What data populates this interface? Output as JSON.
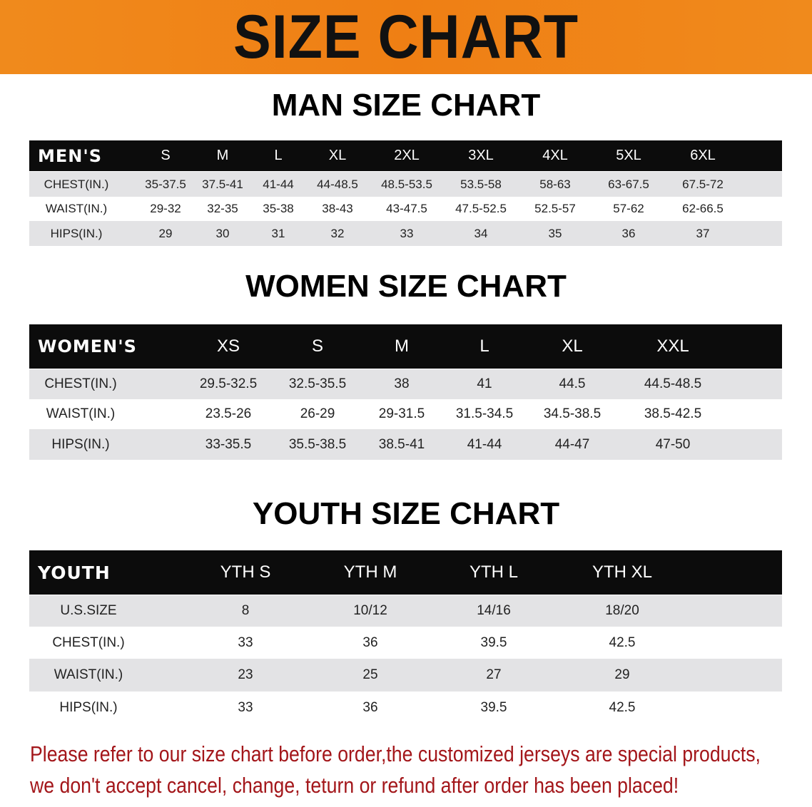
{
  "banner": {
    "title": "SIZE CHART"
  },
  "men": {
    "title": "MAN SIZE CHART",
    "header": [
      "MEN'S",
      "S",
      "M",
      "L",
      "XL",
      "2XL",
      "3XL",
      "4XL",
      "5XL",
      "6XL"
    ],
    "rows": [
      [
        "CHEST(IN.)",
        "35-37.5",
        "37.5-41",
        "41-44",
        "44-48.5",
        "48.5-53.5",
        "53.5-58",
        "58-63",
        "63-67.5",
        "67.5-72"
      ],
      [
        "WAIST(IN.)",
        "29-32",
        "32-35",
        "35-38",
        "38-43",
        "43-47.5",
        "47.5-52.5",
        "52.5-57",
        "57-62",
        "62-66.5"
      ],
      [
        "HIPS(IN.)",
        "29",
        "30",
        "31",
        "32",
        "33",
        "34",
        "35",
        "36",
        "37"
      ]
    ]
  },
  "women": {
    "title": "WOMEN SIZE CHART",
    "header": [
      "WOMEN'S",
      "XS",
      "S",
      "M",
      "L",
      "XL",
      "XXL"
    ],
    "rows": [
      [
        "CHEST(IN.)",
        "29.5-32.5",
        "32.5-35.5",
        "38",
        "41",
        "44.5",
        "44.5-48.5"
      ],
      [
        "WAIST(IN.)",
        "23.5-26",
        "26-29",
        "29-31.5",
        "31.5-34.5",
        "34.5-38.5",
        "38.5-42.5"
      ],
      [
        "HIPS(IN.)",
        "33-35.5",
        "35.5-38.5",
        "38.5-41",
        "41-44",
        "44-47",
        "47-50"
      ]
    ]
  },
  "youth": {
    "title": "YOUTH SIZE CHART",
    "header": [
      "YOUTH",
      "YTH S",
      "YTH M",
      "YTH L",
      "YTH XL"
    ],
    "rows": [
      [
        "U.S.SIZE",
        "8",
        "10/12",
        "14/16",
        "18/20"
      ],
      [
        "CHEST(IN.)",
        "33",
        "36",
        "39.5",
        "42.5"
      ],
      [
        "WAIST(IN.)",
        "23",
        "25",
        "27",
        "29"
      ],
      [
        "HIPS(IN.)",
        "33",
        "36",
        "39.5",
        "42.5"
      ]
    ]
  },
  "note": {
    "line1": "Please refer to our size chart before order,the customized jerseys are special products,",
    "line2": "we don't accept cancel, change, teturn or refund after order has been placed!"
  },
  "colors": {
    "banner": "#ef7f14",
    "header_row": "#0c0c0c",
    "stripe": "#e3e3e5",
    "note": "#a3161a"
  }
}
